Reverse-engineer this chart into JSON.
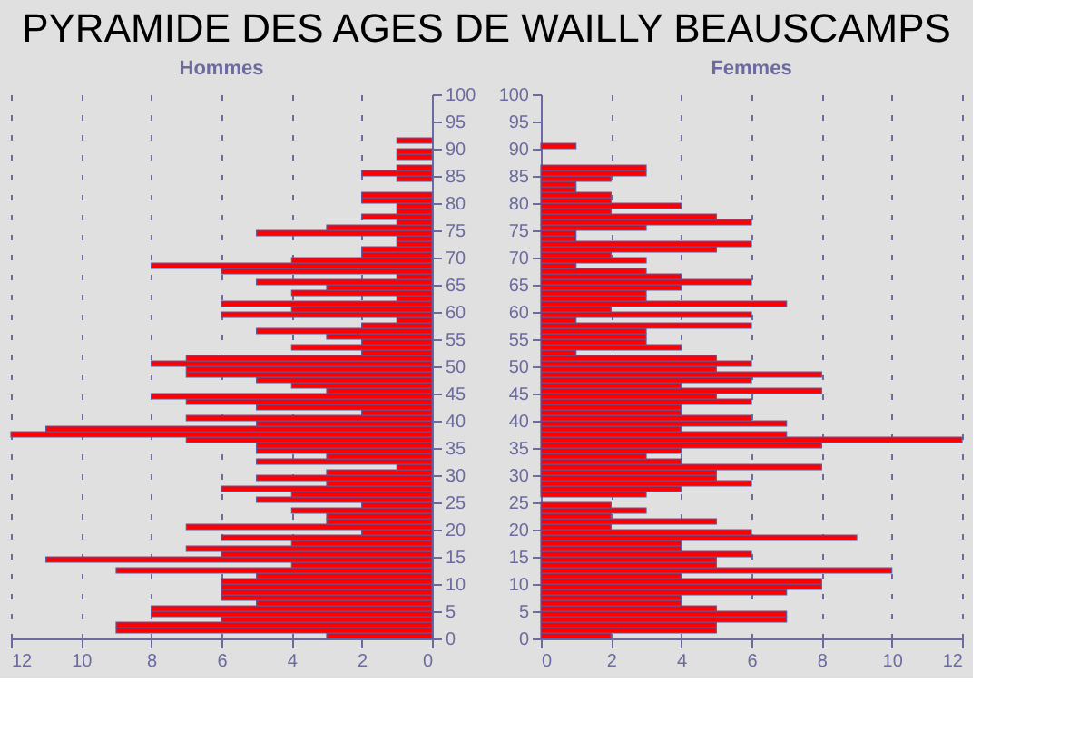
{
  "chart_data": [
    {
      "type": "bar",
      "orientation": "horizontal",
      "title": "Hommes",
      "annotations": [
        "PYRAMIDE DES AGES DE WAILLY BEAUSCAMPS"
      ],
      "series": [
        {
          "color": "#ff0000",
          "x": [
            0,
            1,
            2,
            3,
            4,
            5,
            6,
            7,
            8,
            9,
            10,
            11,
            12,
            13,
            14,
            15,
            16,
            17,
            18,
            19,
            20,
            21,
            22,
            23,
            24,
            25,
            26,
            27,
            28,
            29,
            30,
            31,
            32,
            33,
            34,
            35,
            36,
            37,
            38,
            39,
            40,
            41,
            42,
            43,
            44,
            45,
            46,
            47,
            48,
            49,
            50,
            51,
            52,
            53,
            54,
            55,
            56,
            57,
            58,
            59,
            60,
            61,
            62,
            63,
            64,
            65,
            66,
            67,
            68,
            69,
            70,
            71,
            72,
            73,
            74,
            75,
            76,
            77,
            78,
            79,
            80,
            81,
            82,
            83,
            84,
            85,
            86,
            87,
            88,
            89,
            90,
            91
          ],
          "values": [
            3,
            9,
            9,
            6,
            8,
            8,
            5,
            6,
            6,
            6,
            6,
            5,
            9,
            4,
            11,
            6,
            7,
            4,
            6,
            2,
            7,
            3,
            3,
            4,
            2,
            5,
            4,
            6,
            3,
            5,
            3,
            1,
            5,
            3,
            5,
            5,
            7,
            12,
            11,
            5,
            7,
            2,
            5,
            7,
            8,
            3,
            4,
            5,
            7,
            7,
            8,
            7,
            2,
            4,
            2,
            3,
            5,
            2,
            1,
            6,
            4,
            6,
            1,
            4,
            3,
            5,
            1,
            6,
            8,
            4,
            2,
            2,
            1,
            1,
            5,
            3,
            1,
            2,
            1,
            1,
            2,
            2,
            0,
            0,
            1,
            2,
            1,
            0,
            1,
            1,
            0,
            1
          ]
        }
      ],
      "xlim": [
        12,
        0
      ],
      "xticks": [
        12,
        10,
        8,
        6,
        4,
        2,
        0
      ],
      "ylim": [
        0,
        100
      ],
      "yticks": [
        0,
        5,
        10,
        15,
        20,
        25,
        30,
        35,
        40,
        45,
        50,
        55,
        60,
        65,
        70,
        75,
        80,
        85,
        90,
        95,
        100
      ],
      "grid": "x",
      "legend": false
    },
    {
      "type": "bar",
      "orientation": "horizontal",
      "title": "Femmes",
      "series": [
        {
          "color": "#ff0000",
          "x": [
            0,
            1,
            2,
            3,
            4,
            5,
            6,
            7,
            8,
            9,
            10,
            11,
            12,
            13,
            14,
            15,
            16,
            17,
            18,
            19,
            20,
            21,
            22,
            23,
            24,
            25,
            26,
            27,
            28,
            29,
            30,
            31,
            32,
            33,
            34,
            35,
            36,
            37,
            38,
            39,
            40,
            41,
            42,
            43,
            44,
            45,
            46,
            47,
            48,
            49,
            50,
            51,
            52,
            53,
            54,
            55,
            56,
            57,
            58,
            59,
            60,
            61,
            62,
            63,
            64,
            65,
            66,
            67,
            68,
            69,
            70,
            71,
            72,
            73,
            74,
            75,
            76,
            77,
            78,
            79,
            80,
            81,
            82,
            83,
            84,
            85,
            86,
            87,
            88,
            89,
            90
          ],
          "values": [
            2,
            5,
            5,
            7,
            7,
            5,
            4,
            4,
            7,
            8,
            8,
            4,
            10,
            5,
            5,
            6,
            4,
            4,
            9,
            6,
            2,
            5,
            2,
            3,
            2,
            0,
            3,
            4,
            6,
            5,
            5,
            8,
            4,
            3,
            4,
            8,
            12,
            7,
            4,
            7,
            6,
            4,
            4,
            6,
            5,
            8,
            4,
            6,
            8,
            5,
            6,
            5,
            1,
            4,
            3,
            3,
            3,
            6,
            1,
            6,
            2,
            7,
            3,
            3,
            4,
            6,
            4,
            3,
            1,
            3,
            2,
            5,
            6,
            1,
            1,
            3,
            6,
            5,
            2,
            4,
            2,
            2,
            1,
            1,
            2,
            3,
            3,
            0,
            0,
            0,
            1
          ]
        }
      ],
      "xlim": [
        0,
        12
      ],
      "xticks": [
        0,
        2,
        4,
        6,
        8,
        10,
        12
      ],
      "ylim": [
        0,
        100
      ],
      "yticks": [
        0,
        5,
        10,
        15,
        20,
        25,
        30,
        35,
        40,
        45,
        50,
        55,
        60,
        65,
        70,
        75,
        80,
        85,
        90,
        95,
        100
      ],
      "grid": "x",
      "legend": false
    }
  ]
}
